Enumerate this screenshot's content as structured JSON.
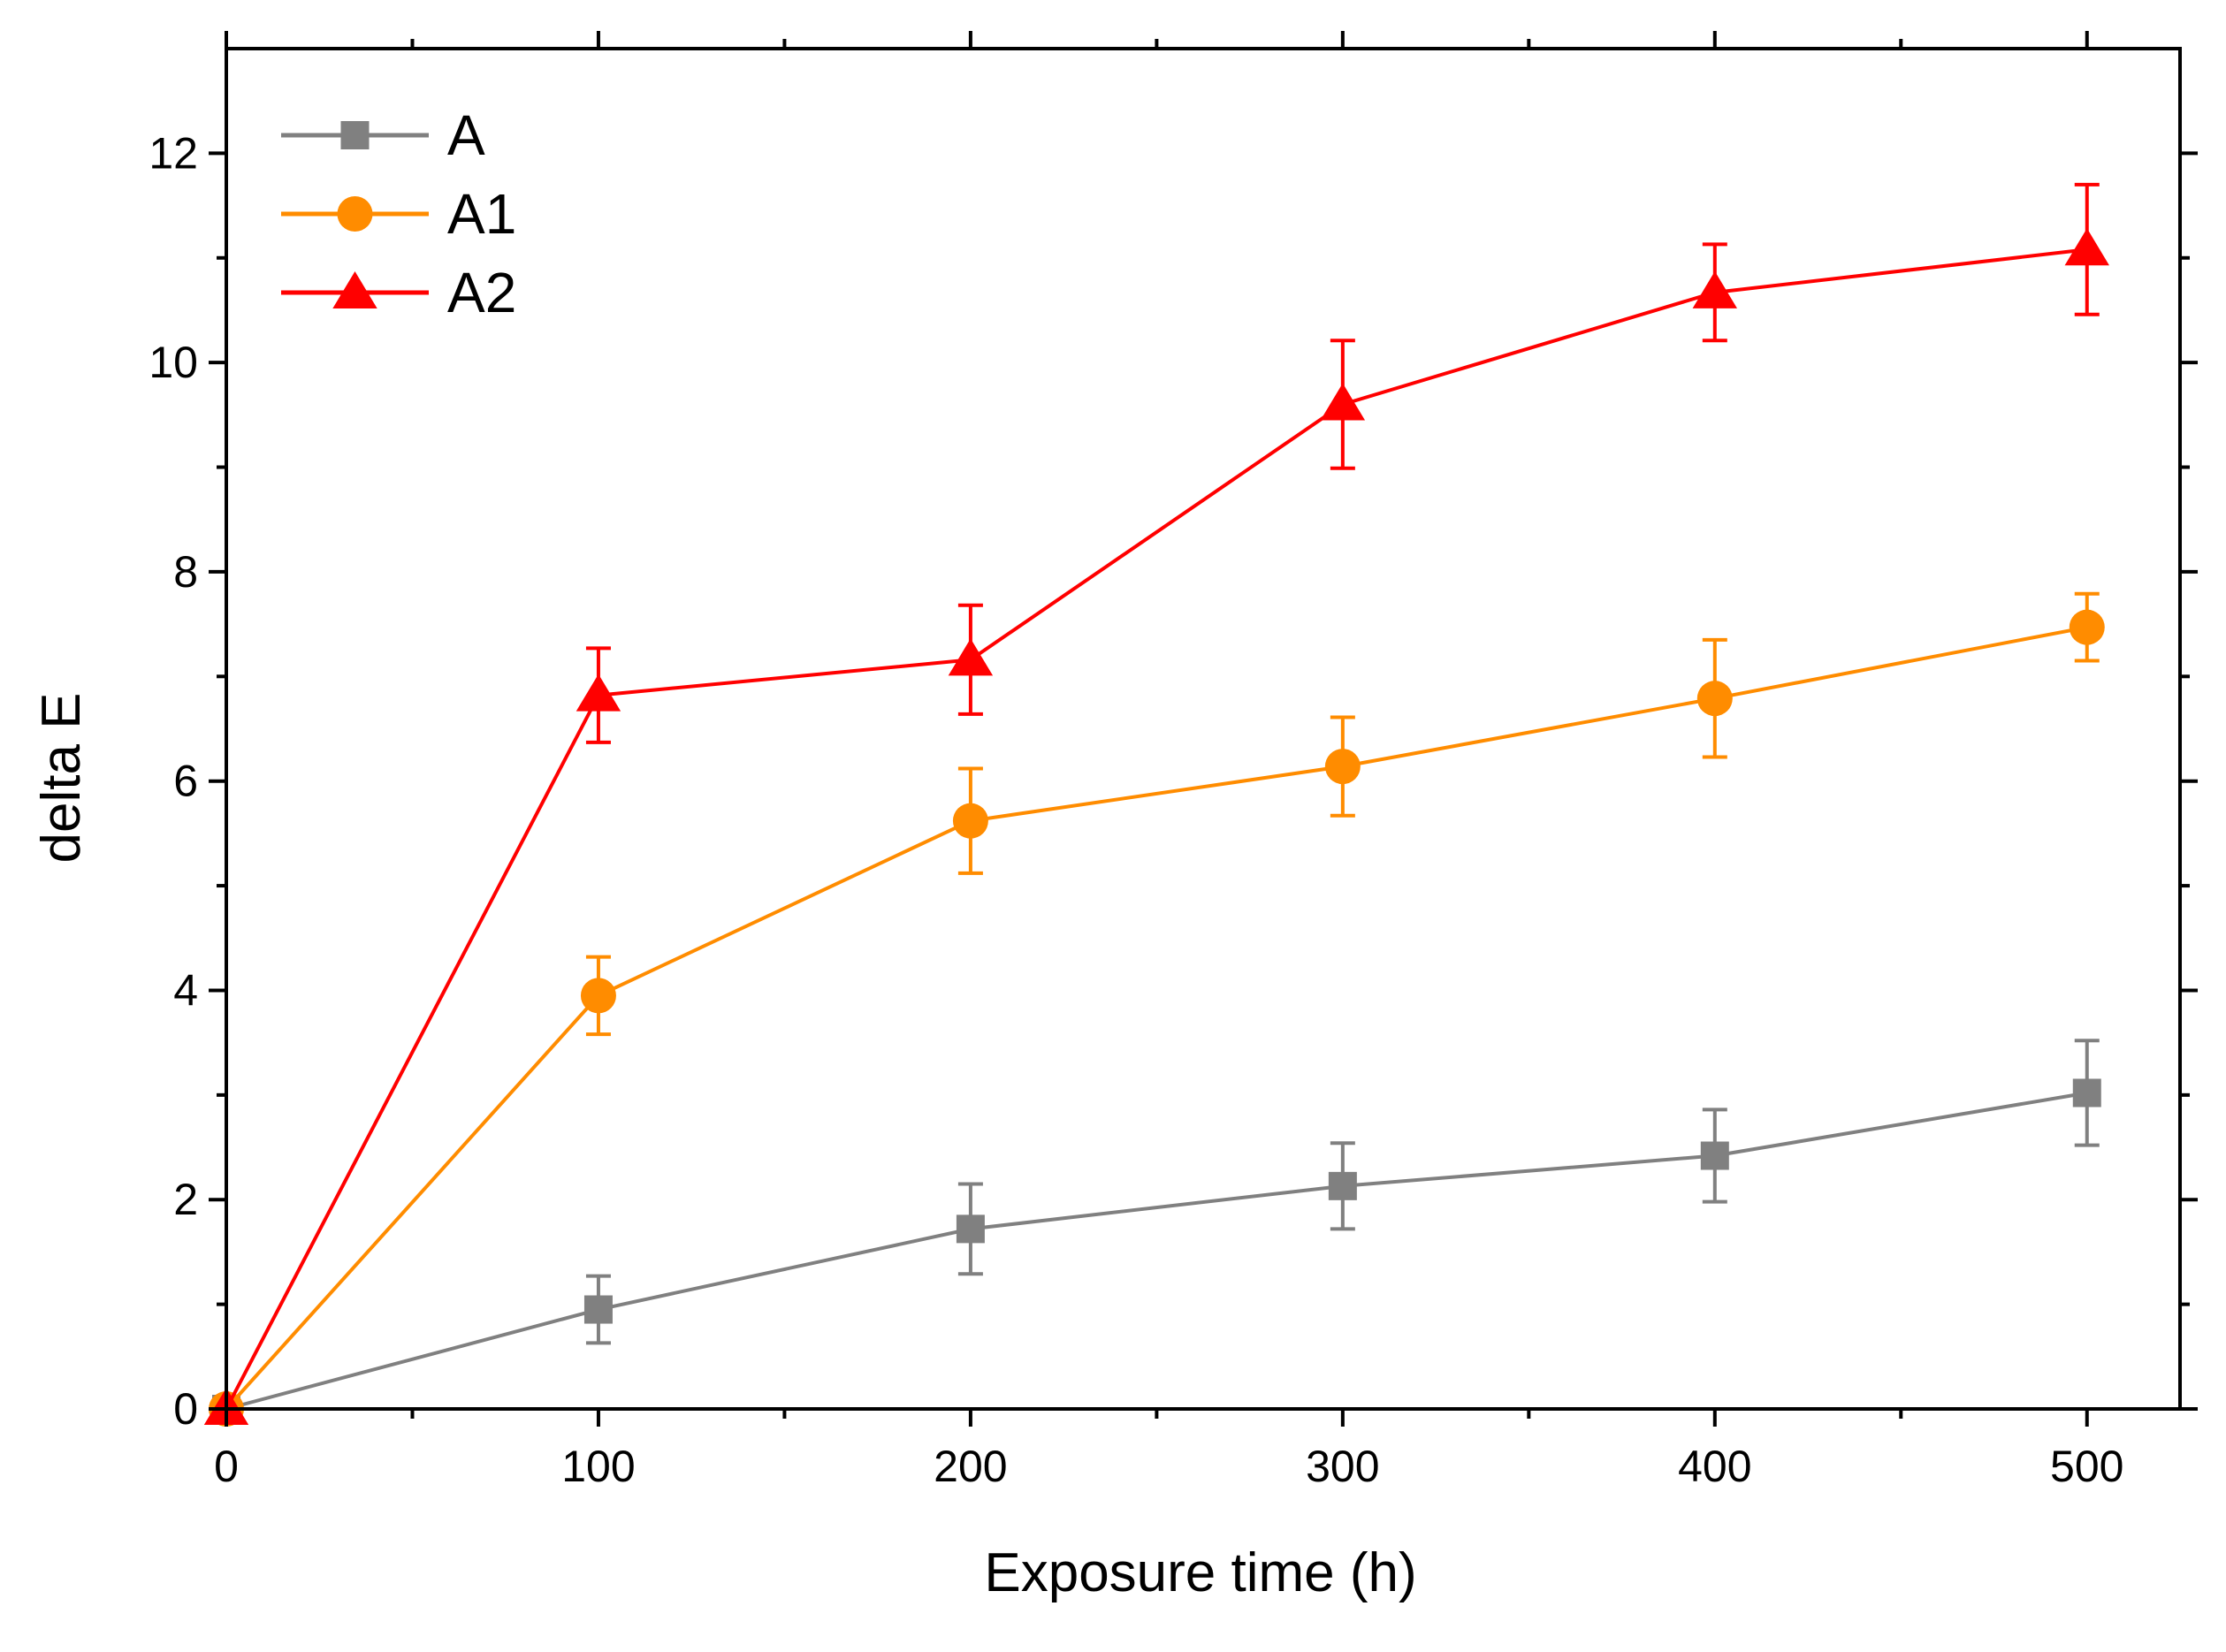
{
  "chart_data": {
    "type": "line",
    "title": "",
    "xlabel": "Exposure time (h)",
    "ylabel": "delta E",
    "xlim": [
      0,
      525
    ],
    "ylim": [
      0,
      13
    ],
    "xticks": [
      0,
      100,
      200,
      300,
      400,
      500
    ],
    "yticks": [
      0,
      2,
      4,
      6,
      8,
      10,
      12
    ],
    "x_minor_ticks": [
      50,
      150,
      250,
      350,
      450
    ],
    "y_minor_ticks": [
      1,
      3,
      5,
      7,
      9,
      11
    ],
    "x": [
      0,
      100,
      200,
      300,
      400,
      500
    ],
    "grid": false,
    "legend_position": "top-left",
    "series": [
      {
        "name": "A",
        "color": "#808080",
        "marker": "square",
        "values": [
          0,
          0.95,
          1.72,
          2.13,
          2.42,
          3.02
        ],
        "errors": [
          0,
          0.32,
          0.43,
          0.41,
          0.44,
          0.5
        ]
      },
      {
        "name": "A1",
        "color": "#FF8C00",
        "marker": "circle",
        "values": [
          0,
          3.95,
          5.62,
          6.14,
          6.79,
          7.47
        ],
        "errors": [
          0,
          0.37,
          0.5,
          0.47,
          0.56,
          0.32
        ]
      },
      {
        "name": "A2",
        "color": "#FF0000",
        "marker": "triangle",
        "values": [
          0,
          6.82,
          7.16,
          9.6,
          10.67,
          11.08
        ],
        "errors": [
          0,
          0.45,
          0.52,
          0.61,
          0.46,
          0.62
        ]
      }
    ]
  }
}
